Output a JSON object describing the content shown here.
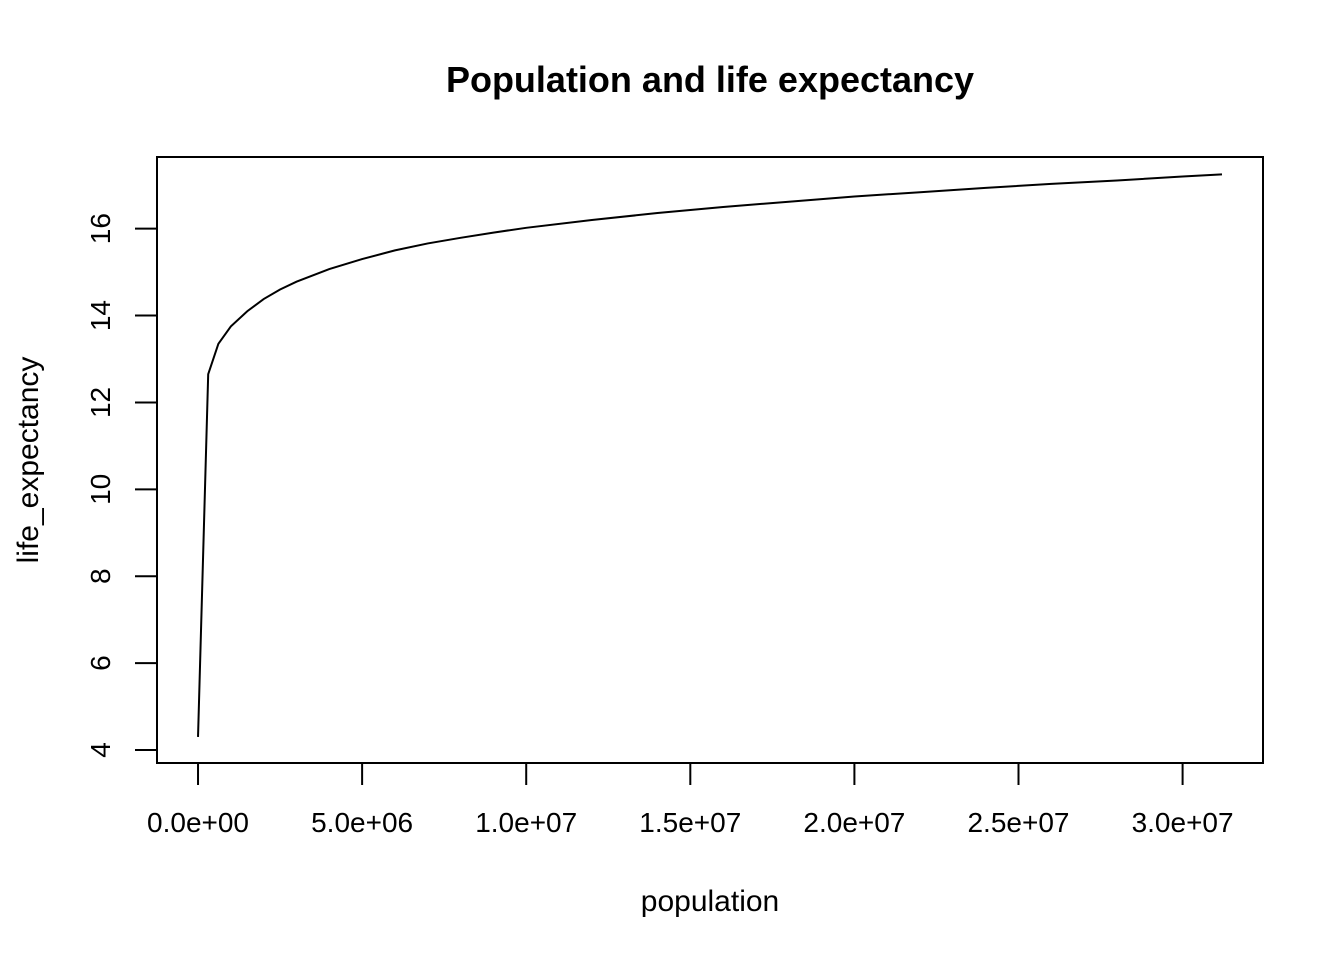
{
  "chart_data": {
    "type": "line",
    "title": "Population and life expectancy",
    "xlabel": "population",
    "ylabel": "life_expectancy",
    "xlim": [
      -1250000,
      32450000
    ],
    "ylim": [
      3.7,
      17.65
    ],
    "x_ticks": [
      0,
      5000000,
      10000000,
      15000000,
      20000000,
      25000000,
      30000000
    ],
    "x_tick_labels": [
      "0.0e+00",
      "5.0e+06",
      "1.0e+07",
      "1.5e+07",
      "2.0e+07",
      "2.5e+07",
      "3.0e+07"
    ],
    "y_ticks": [
      4,
      6,
      8,
      10,
      12,
      14,
      16
    ],
    "y_tick_labels": [
      "4",
      "6",
      "8",
      "10",
      "12",
      "14",
      "16"
    ],
    "grid": false,
    "line_color": "#000000",
    "series": [
      {
        "x": [
          0,
          310000,
          620000,
          1000000,
          1500000,
          2000000,
          2500000,
          3000000,
          4000000,
          5000000,
          6000000,
          7000000,
          8000000,
          9000000,
          10000000,
          12000000,
          14000000,
          16000000,
          18000000,
          20000000,
          22000000,
          24000000,
          26000000,
          28000000,
          30000000,
          31200000
        ],
        "y": [
          4.3,
          12.65,
          13.35,
          13.75,
          14.1,
          14.38,
          14.6,
          14.78,
          15.07,
          15.3,
          15.5,
          15.66,
          15.79,
          15.91,
          16.02,
          16.2,
          16.36,
          16.5,
          16.62,
          16.74,
          16.84,
          16.94,
          17.03,
          17.11,
          17.2,
          17.25
        ]
      }
    ]
  }
}
